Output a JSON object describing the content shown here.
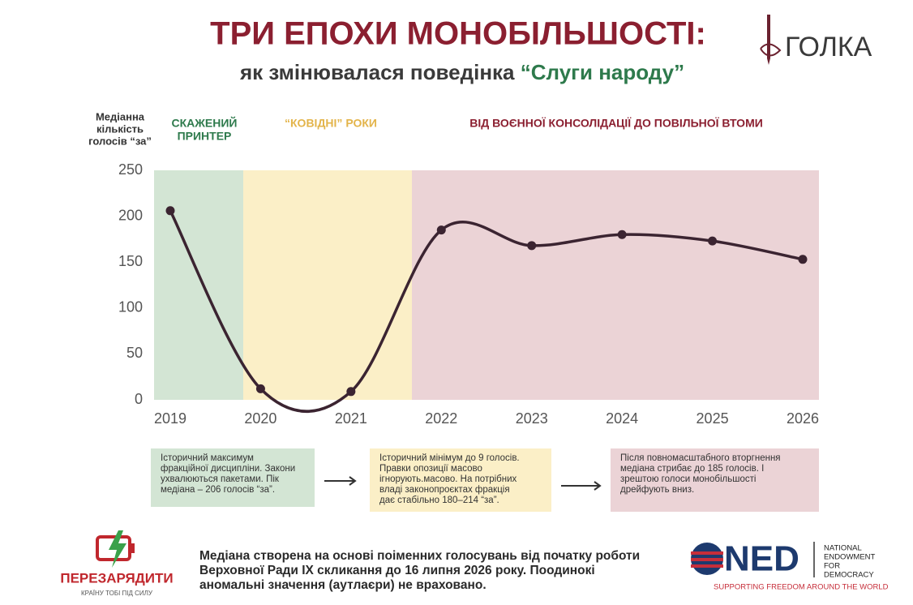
{
  "header": {
    "title": "ТРИ ЕПОХИ МОНОБІЛЬШОСТІ:",
    "subtitle": "як змінювалася поведінка",
    "subtitle_highlight": "“Слуги народу”",
    "brand": "ГОЛКА"
  },
  "chart_data": {
    "type": "line",
    "y_label": [
      "Медіанна",
      "кількість",
      "голосів “за”"
    ],
    "eras": [
      {
        "label": [
          "СКАЖЕНИЙ",
          "ПРИНТЕР"
        ],
        "color": "#2e7a4c",
        "band": "#d3e5d4"
      },
      {
        "label": [
          "“КОВІДНІ” РОКИ"
        ],
        "color": "#e3b44a",
        "band": "#fbefc7"
      },
      {
        "label": [
          "ВІД ВОЄННОЇ КОНСОЛІДАЦІЇ ДО ПОВІЛЬНОЇ ВТОМИ"
        ],
        "color": "#8b1f30",
        "band": "#ebd3d6"
      }
    ],
    "categories": [
      "2019",
      "2020",
      "2021",
      "2022",
      "2023",
      "2024",
      "2025",
      "2026"
    ],
    "series": [
      {
        "name": "Медіанна кількість голосів “за”",
        "color": "#3b2431",
        "values": [
          206,
          12,
          9,
          185,
          168,
          180,
          173,
          153
        ]
      }
    ],
    "ylim": [
      0,
      250
    ],
    "yticks": [
      0,
      50,
      100,
      150,
      200,
      250
    ],
    "grid": false
  },
  "notes": [
    {
      "lines": [
        "Історичний максимум",
        "фракційної дисципліни. Закони",
        "ухвалюються пакетами. Пік",
        "медіана – 206 голосів “за”."
      ]
    },
    {
      "lines": [
        "Історичний мінімум до 9 голосів.",
        "Правки опозиції масово",
        "ігнорують.масово. На потрібних",
        "владі законопроєктах фракція",
        "дає стабільно 180–214 “за”."
      ]
    },
    {
      "lines": [
        "Після повномасштабного вторгнення",
        "медіана стрибає до 185 голосів. І",
        "зрештою голоси монобільшості",
        "дрейфують вниз."
      ]
    }
  ],
  "footer": {
    "text": [
      "Медіана створена на основі поіменних голосувань від початку роботи",
      "Верховної Ради IX скликання до 16 липня 2026 року. Поодинокі",
      "аномальні значення (аутлаєри) не враховано."
    ],
    "partner": "ПЕРЕЗАРЯДИТИ",
    "partner_tagline": "КРАЇНУ ТОБІ ПІД СИЛУ",
    "ned": "NED",
    "ned_full": [
      "NATIONAL",
      "ENDOWMENT",
      "FOR",
      "DEMOCRACY"
    ],
    "ned_tagline": "SUPPORTING FREEDOM AROUND THE WORLD"
  }
}
